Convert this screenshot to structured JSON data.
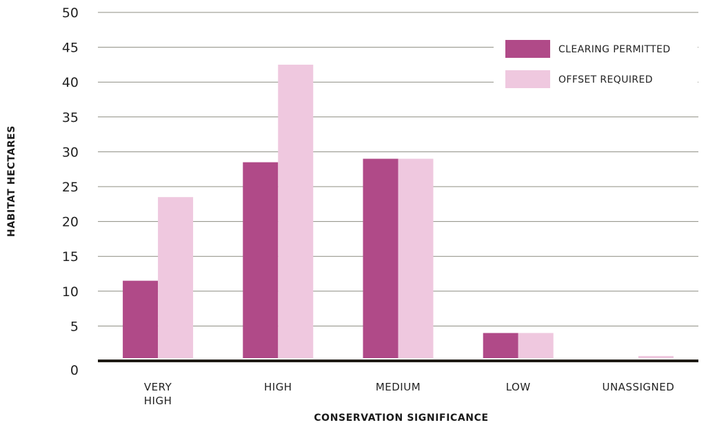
{
  "chart_data": {
    "type": "bar",
    "categories": [
      "VERY HIGH",
      "HIGH",
      "MEDIUM",
      "LOW",
      "UNASSIGNED"
    ],
    "category_lines": [
      [
        "VERY",
        "HIGH"
      ],
      [
        "HIGH"
      ],
      [
        "MEDIUM"
      ],
      [
        "LOW"
      ],
      [
        "UNASSIGNED"
      ]
    ],
    "series": [
      {
        "name": "CLEARING PERMITTED",
        "color": "#b04a88",
        "values": [
          11.5,
          28.5,
          29,
          4,
          0.3
        ]
      },
      {
        "name": "OFFSET REQUIRED",
        "color": "#efc8df",
        "values": [
          23.5,
          42.5,
          29,
          4,
          0.7
        ]
      }
    ],
    "xlabel": "CONSERVATION SIGNIFICANCE",
    "ylabel": "HABITAT HECTARES",
    "ylim": [
      0,
      50
    ],
    "yticks": [
      0,
      5,
      10,
      15,
      20,
      25,
      30,
      35,
      40,
      45,
      50
    ],
    "grid": true,
    "legend_position": "top-right"
  }
}
